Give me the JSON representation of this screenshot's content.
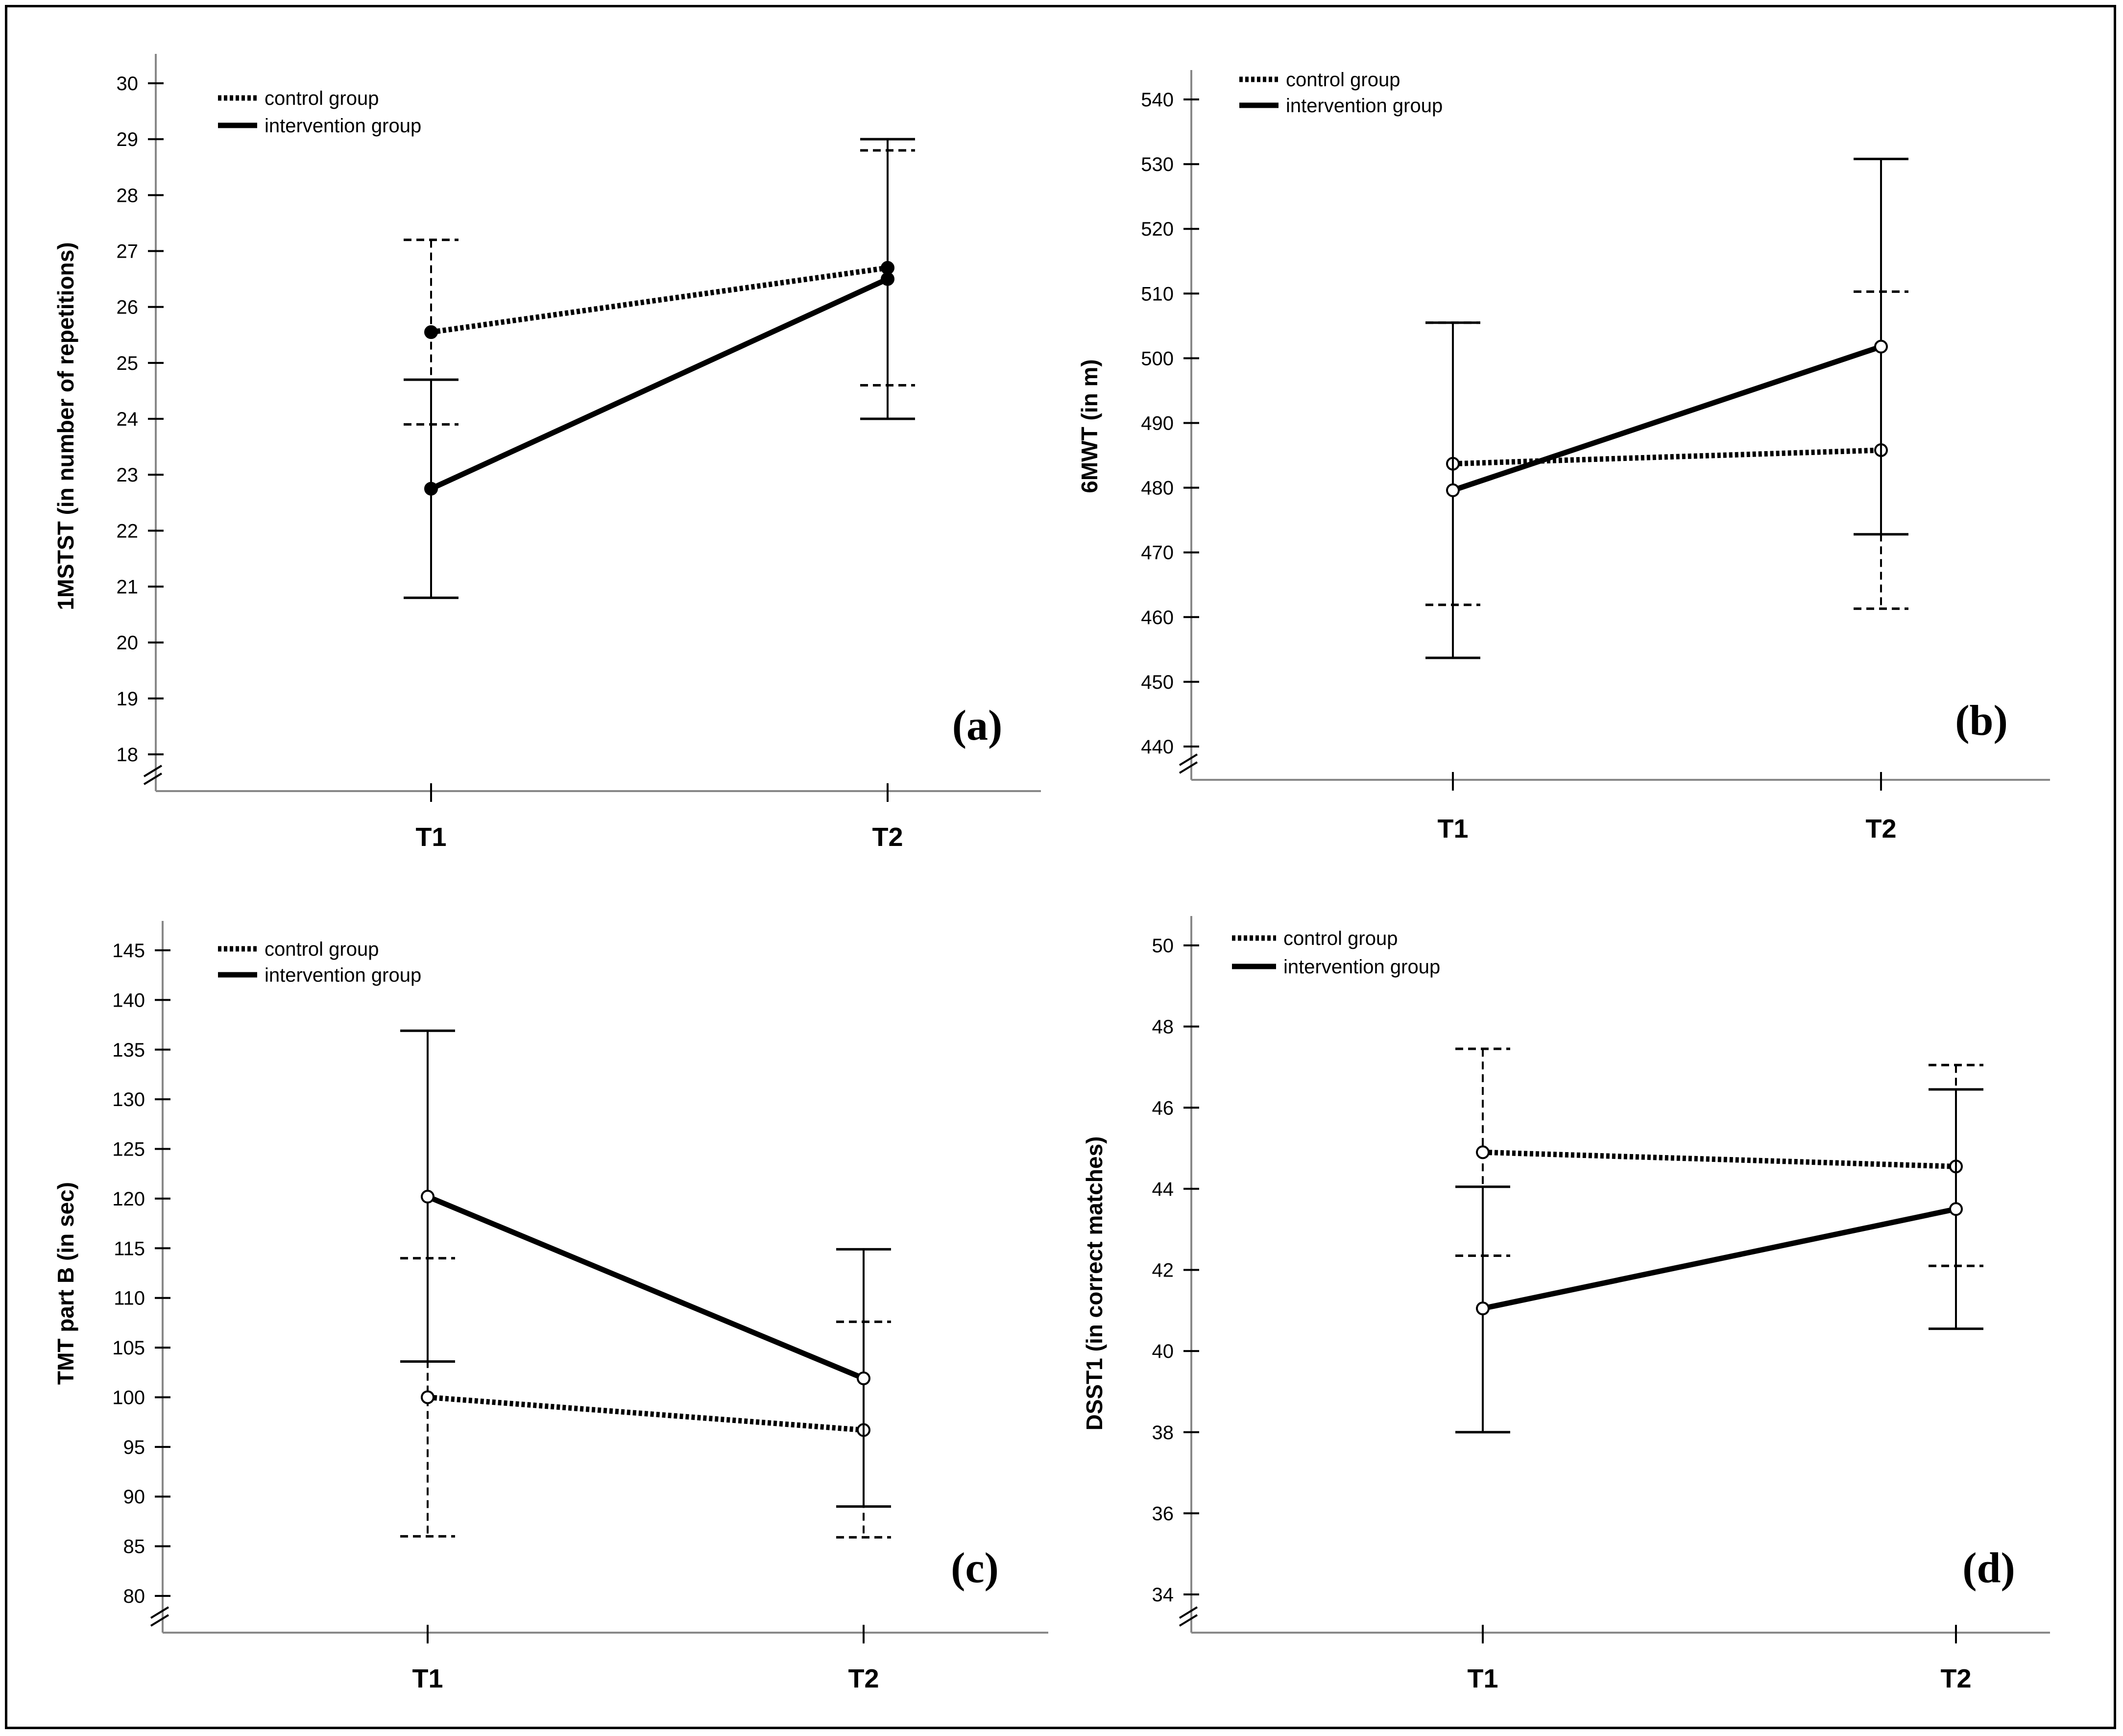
{
  "figure": {
    "panel_count": 4
  },
  "legend": {
    "control": "control group",
    "intervention": "intervention group"
  },
  "chart_data": [
    {
      "type": "line",
      "tag": "(a)",
      "ylabel": "1MSTST (in number of repetitions)",
      "categories": [
        "T1",
        "T2"
      ],
      "ylim": [
        18,
        30
      ],
      "yticks": [
        18,
        19,
        20,
        21,
        22,
        23,
        24,
        25,
        26,
        27,
        28,
        29,
        30
      ],
      "series": [
        {
          "name": "control group",
          "style": "dotted",
          "values": [
            25.55,
            26.7
          ],
          "lower": [
            23.9,
            24.6
          ],
          "upper": [
            27.2,
            28.8
          ],
          "marker": "filled"
        },
        {
          "name": "intervention group",
          "style": "solid",
          "values": [
            22.75,
            26.5
          ],
          "lower": [
            20.8,
            24.0
          ],
          "upper": [
            24.7,
            29.0
          ],
          "marker": "filled"
        }
      ]
    },
    {
      "type": "line",
      "tag": "(b)",
      "ylabel": "6MWT (in m)",
      "categories": [
        "T1",
        "T2"
      ],
      "ylim": [
        440,
        540
      ],
      "yticks": [
        440,
        450,
        460,
        470,
        480,
        490,
        500,
        510,
        520,
        530,
        540
      ],
      "series": [
        {
          "name": "control group",
          "style": "dotted",
          "values": [
            483.7,
            485.8
          ],
          "lower": [
            461.9,
            461.3
          ],
          "upper": [
            505.5,
            510.3
          ],
          "marker": "open"
        },
        {
          "name": "intervention group",
          "style": "solid",
          "values": [
            479.6,
            501.8
          ],
          "lower": [
            453.7,
            472.8
          ],
          "upper": [
            505.5,
            530.8
          ],
          "marker": "open"
        }
      ]
    },
    {
      "type": "line",
      "tag": "(c)",
      "ylabel": "TMT part B (in sec)",
      "categories": [
        "T1",
        "T2"
      ],
      "ylim": [
        80,
        145
      ],
      "yticks": [
        80,
        85,
        90,
        95,
        100,
        105,
        110,
        115,
        120,
        125,
        130,
        135,
        140,
        145
      ],
      "series": [
        {
          "name": "control group",
          "style": "dotted",
          "values": [
            100.0,
            96.7
          ],
          "lower": [
            86.0,
            85.9
          ],
          "upper": [
            114.0,
            107.6
          ],
          "marker": "open"
        },
        {
          "name": "intervention group",
          "style": "solid",
          "values": [
            120.2,
            101.9
          ],
          "lower": [
            103.6,
            89.0
          ],
          "upper": [
            136.9,
            114.9
          ],
          "marker": "open"
        }
      ]
    },
    {
      "type": "line",
      "tag": "(d)",
      "ylabel": "DSST1 (in correct matches)",
      "categories": [
        "T1",
        "T2"
      ],
      "ylim": [
        34,
        50
      ],
      "yticks": [
        34,
        36,
        38,
        40,
        42,
        44,
        46,
        48,
        50
      ],
      "series": [
        {
          "name": "control group",
          "style": "dotted",
          "values": [
            44.9,
            44.55
          ],
          "lower": [
            42.35,
            42.1
          ],
          "upper": [
            47.45,
            47.05
          ],
          "marker": "open"
        },
        {
          "name": "intervention group",
          "style": "solid",
          "values": [
            41.05,
            43.5
          ],
          "lower": [
            38.0,
            40.55
          ],
          "upper": [
            44.05,
            46.45
          ],
          "marker": "open"
        }
      ]
    }
  ]
}
